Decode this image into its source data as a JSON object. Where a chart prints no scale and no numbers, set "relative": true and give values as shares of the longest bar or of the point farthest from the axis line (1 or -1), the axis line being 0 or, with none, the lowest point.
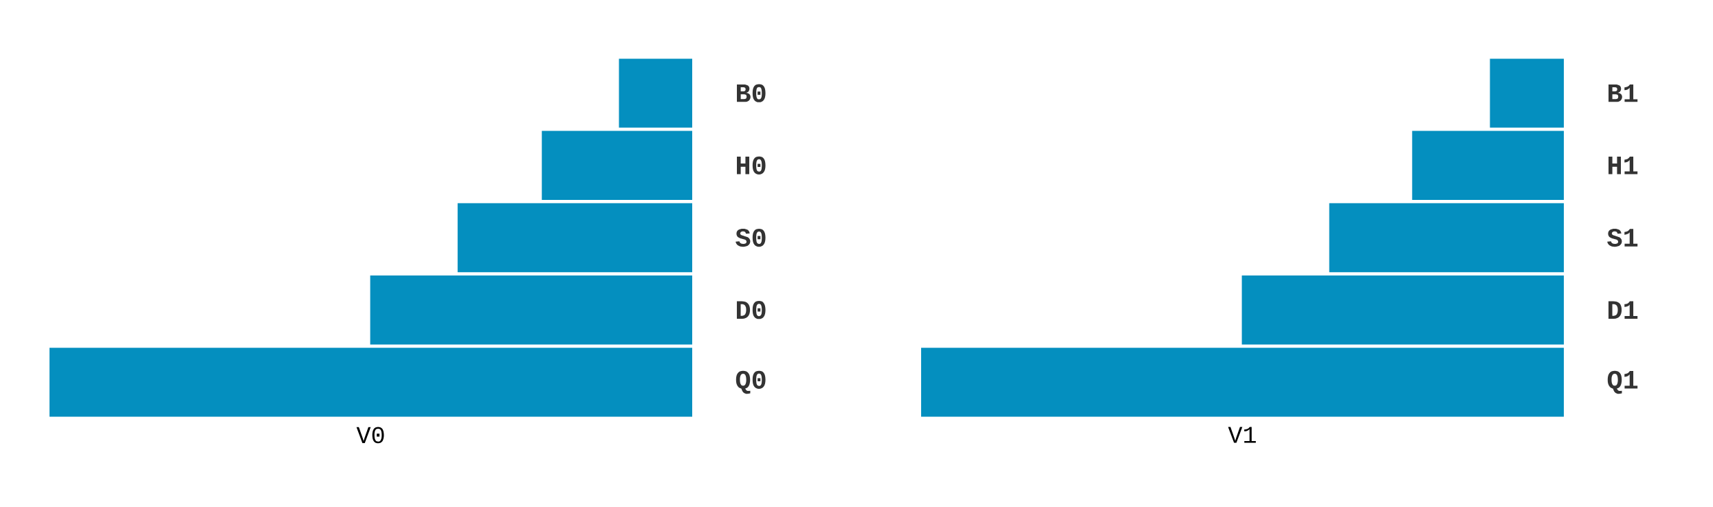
{
  "chart_data": [
    {
      "type": "bar",
      "orientation": "horizontal",
      "relative": true,
      "tick_labels": "y",
      "xlabel": "V0",
      "categories": [
        "B0",
        "H0",
        "S0",
        "D0",
        "Q0"
      ],
      "values": [
        0.114,
        0.234,
        0.365,
        0.501,
        1
      ],
      "color": "#048fbf"
    },
    {
      "type": "bar",
      "orientation": "horizontal",
      "relative": true,
      "tick_labels": "y",
      "xlabel": "V1",
      "categories": [
        "B1",
        "H1",
        "S1",
        "D1",
        "Q1"
      ],
      "values": [
        0.115,
        0.236,
        0.365,
        0.501,
        1
      ],
      "color": "#048fbf"
    }
  ]
}
